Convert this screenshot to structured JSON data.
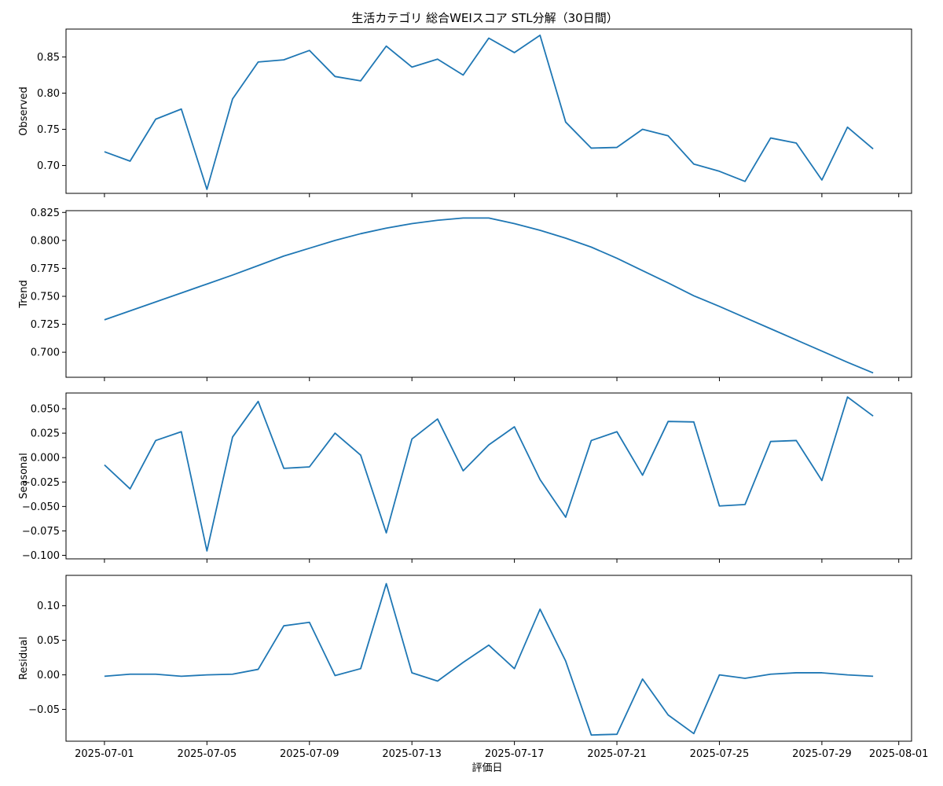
{
  "title": "生活カテゴリ 総合WEIスコア STL分解（30日間）",
  "xlabel": "評価日",
  "x_tick_labels": [
    "2025-07-01",
    "2025-07-05",
    "2025-07-09",
    "2025-07-13",
    "2025-07-17",
    "2025-07-21",
    "2025-07-25",
    "2025-07-29",
    "2025-08-01"
  ],
  "chart_data": {
    "type": "line",
    "title": "生活カテゴリ 総合WEIスコア STL分解（30日間）",
    "xlabel": "評価日",
    "x": [
      "2025-07-01",
      "2025-07-02",
      "2025-07-03",
      "2025-07-04",
      "2025-07-05",
      "2025-07-06",
      "2025-07-07",
      "2025-07-08",
      "2025-07-09",
      "2025-07-10",
      "2025-07-11",
      "2025-07-12",
      "2025-07-13",
      "2025-07-14",
      "2025-07-15",
      "2025-07-16",
      "2025-07-17",
      "2025-07-18",
      "2025-07-19",
      "2025-07-20",
      "2025-07-21",
      "2025-07-22",
      "2025-07-23",
      "2025-07-24",
      "2025-07-25",
      "2025-07-26",
      "2025-07-27",
      "2025-07-28",
      "2025-07-29",
      "2025-07-30",
      "2025-07-31"
    ],
    "xlim": [
      "2025-06-29T12:00",
      "2025-08-01T12:00"
    ],
    "x_ticks": [
      "2025-07-01",
      "2025-07-05",
      "2025-07-09",
      "2025-07-13",
      "2025-07-17",
      "2025-07-21",
      "2025-07-25",
      "2025-07-29",
      "2025-08-01"
    ],
    "panels": [
      {
        "ylabel": "Observed",
        "ylim": [
          0.6615,
          0.8885
        ],
        "y_ticks": [
          0.7,
          0.75,
          0.8,
          0.85
        ],
        "y_tick_labels": [
          "0.70",
          "0.75",
          "0.80",
          "0.85"
        ],
        "values": [
          0.719,
          0.706,
          0.764,
          0.778,
          0.667,
          0.792,
          0.843,
          0.846,
          0.859,
          0.823,
          0.817,
          0.865,
          0.836,
          0.847,
          0.825,
          0.876,
          0.856,
          0.88,
          0.76,
          0.724,
          0.725,
          0.75,
          0.741,
          0.702,
          0.692,
          0.678,
          0.738,
          0.731,
          0.68,
          0.753,
          0.723
        ]
      },
      {
        "ylabel": "Trend",
        "ylim": [
          0.6776,
          0.8266
        ],
        "y_ticks": [
          0.7,
          0.725,
          0.75,
          0.775,
          0.8,
          0.825
        ],
        "y_tick_labels": [
          "0.700",
          "0.725",
          "0.750",
          "0.775",
          "0.800",
          "0.825"
        ],
        "values": [
          0.729,
          0.737,
          0.745,
          0.753,
          0.761,
          0.769,
          0.7775,
          0.786,
          0.793,
          0.8,
          0.806,
          0.811,
          0.815,
          0.818,
          0.82,
          0.82,
          0.815,
          0.809,
          0.802,
          0.794,
          0.784,
          0.773,
          0.762,
          0.7505,
          0.741,
          0.731,
          0.721,
          0.711,
          0.701,
          0.691,
          0.6815
        ]
      },
      {
        "ylabel": "Seasonal",
        "ylim": [
          -0.1036,
          0.0661
        ],
        "y_ticks": [
          -0.1,
          -0.075,
          -0.05,
          -0.025,
          0.0,
          0.025,
          0.05
        ],
        "y_tick_labels": [
          "−0.100",
          "−0.075",
          "−0.050",
          "−0.025",
          "0.000",
          "0.025",
          "0.050"
        ],
        "values": [
          -0.0075,
          -0.032,
          0.0175,
          0.0265,
          -0.0955,
          0.021,
          0.0575,
          -0.011,
          -0.0095,
          0.025,
          0.0025,
          -0.077,
          0.019,
          0.0395,
          -0.0135,
          0.013,
          0.0315,
          -0.0225,
          -0.061,
          0.0175,
          0.0265,
          -0.018,
          0.037,
          0.0365,
          -0.0495,
          -0.048,
          0.0165,
          0.0175,
          -0.0235,
          0.062,
          0.0425
        ]
      },
      {
        "ylabel": "Residual",
        "ylim": [
          -0.096,
          0.144
        ],
        "y_ticks": [
          -0.05,
          0.0,
          0.05,
          0.1
        ],
        "y_tick_labels": [
          "−0.05",
          "0.00",
          "0.05",
          "0.10"
        ],
        "values": [
          -0.002,
          0.001,
          0.001,
          -0.002,
          0.0,
          0.001,
          0.008,
          0.071,
          0.076,
          -0.001,
          0.009,
          0.132,
          0.003,
          -0.009,
          0.018,
          0.043,
          0.009,
          0.095,
          0.02,
          -0.087,
          -0.086,
          -0.006,
          -0.058,
          -0.085,
          0.0,
          -0.005,
          0.001,
          0.003,
          0.003,
          0.0,
          -0.002
        ]
      }
    ]
  }
}
